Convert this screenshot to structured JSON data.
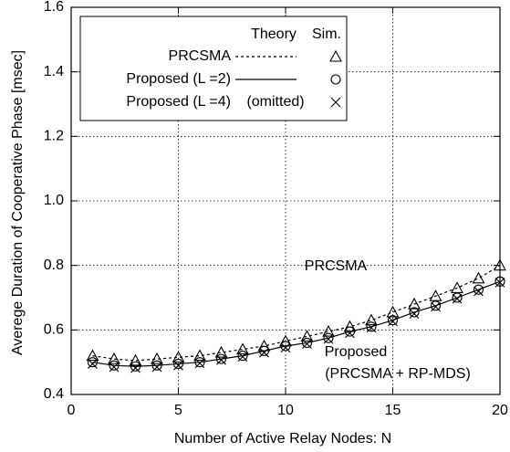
{
  "chart_data": {
    "type": "line",
    "xlabel": "Number of Active Relay Nodes: N",
    "ylabel": "Averege Duration of Cooperative Phase [msec]",
    "x": [
      1,
      2,
      3,
      4,
      5,
      6,
      7,
      8,
      9,
      10,
      11,
      12,
      13,
      14,
      15,
      16,
      17,
      18,
      19,
      20
    ],
    "xlim": [
      0,
      20
    ],
    "xticks": [
      0,
      5,
      10,
      15,
      20
    ],
    "ylim": [
      0.4,
      1.6
    ],
    "yticks": [
      0.4,
      0.6,
      0.8,
      {
        "value": 1.0,
        "label": "1.0"
      },
      1.2,
      1.4,
      1.6
    ],
    "grid": true,
    "legend_header": [
      "Theory",
      "Sim."
    ],
    "series": [
      {
        "name": "PRCSMA",
        "line": "dotted",
        "marker": "triangle",
        "theory": [
          0.52,
          0.51,
          0.505,
          0.51,
          0.515,
          0.52,
          0.53,
          0.54,
          0.55,
          0.565,
          0.58,
          0.595,
          0.61,
          0.63,
          0.655,
          0.68,
          0.705,
          0.73,
          0.76,
          0.8
        ],
        "sim": [
          0.52,
          0.51,
          0.505,
          0.51,
          0.515,
          0.52,
          0.53,
          0.54,
          0.55,
          0.565,
          0.58,
          0.595,
          0.61,
          0.63,
          0.655,
          0.68,
          0.705,
          0.73,
          0.76,
          0.8
        ]
      },
      {
        "name": "Proposed (L =2)",
        "line": "solid",
        "marker": "circle",
        "theory": [
          0.5,
          0.49,
          0.487,
          0.49,
          0.495,
          0.5,
          0.51,
          0.52,
          0.535,
          0.55,
          0.56,
          0.575,
          0.595,
          0.61,
          0.63,
          0.655,
          0.675,
          0.7,
          0.725,
          0.75
        ],
        "sim": [
          0.5,
          0.49,
          0.487,
          0.49,
          0.495,
          0.5,
          0.51,
          0.52,
          0.535,
          0.55,
          0.56,
          0.575,
          0.595,
          0.61,
          0.63,
          0.655,
          0.675,
          0.7,
          0.725,
          0.75
        ]
      },
      {
        "name": "Proposed (L =4)",
        "theory_label": "(omitted)",
        "marker": "cross",
        "sim": [
          0.495,
          0.485,
          0.482,
          0.485,
          0.49,
          0.497,
          0.507,
          0.517,
          0.53,
          0.545,
          0.557,
          0.572,
          0.59,
          0.607,
          0.627,
          0.65,
          0.672,
          0.697,
          0.72,
          0.747
        ]
      }
    ],
    "annotations": [
      "PRCSMA",
      "Proposed",
      "(PRCSMA + RP-MDS)"
    ]
  }
}
